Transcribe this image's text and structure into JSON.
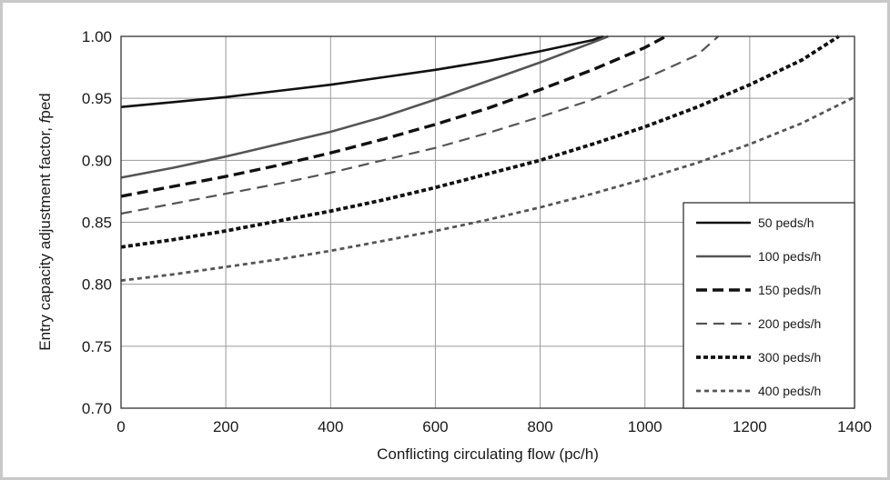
{
  "chart_data": {
    "type": "line",
    "title": "",
    "xlabel": "Conflicting circulating flow (pc/h)",
    "ylabel_parts": [
      "Entry capacity adjustment factor, ",
      "f",
      "ped"
    ],
    "xlim": [
      0,
      1400
    ],
    "ylim": [
      0.7,
      1.0
    ],
    "x_ticks": [
      "0",
      "200",
      "400",
      "600",
      "800",
      "1000",
      "1200",
      "1400"
    ],
    "y_ticks": [
      "0.70",
      "0.75",
      "0.80",
      "0.85",
      "0.90",
      "0.95",
      "1.00"
    ],
    "grid": true,
    "legend_position": "right",
    "series": [
      {
        "name": "50 peds/h",
        "style": "solid",
        "color": "#111111",
        "x": [
          0,
          100,
          200,
          300,
          400,
          500,
          600,
          700,
          800,
          900,
          920
        ],
        "y": [
          0.943,
          0.947,
          0.951,
          0.956,
          0.961,
          0.967,
          0.973,
          0.98,
          0.988,
          0.997,
          1.0
        ]
      },
      {
        "name": "100 peds/h",
        "style": "solid",
        "color": "#555555",
        "x": [
          0,
          100,
          200,
          300,
          400,
          500,
          600,
          700,
          800,
          900,
          930
        ],
        "y": [
          0.886,
          0.894,
          0.903,
          0.913,
          0.923,
          0.935,
          0.949,
          0.964,
          0.979,
          0.995,
          1.0
        ]
      },
      {
        "name": "150 peds/h",
        "style": "dash-heavy",
        "color": "#111111",
        "x": [
          0,
          100,
          200,
          300,
          400,
          500,
          600,
          700,
          800,
          900,
          1000,
          1040
        ],
        "y": [
          0.871,
          0.879,
          0.887,
          0.896,
          0.906,
          0.917,
          0.929,
          0.942,
          0.957,
          0.973,
          0.991,
          1.0
        ]
      },
      {
        "name": "200 peds/h",
        "style": "dash-light",
        "color": "#555555",
        "x": [
          0,
          100,
          200,
          300,
          400,
          500,
          600,
          700,
          800,
          900,
          1000,
          1100,
          1140
        ],
        "y": [
          0.857,
          0.865,
          0.873,
          0.881,
          0.89,
          0.9,
          0.91,
          0.922,
          0.935,
          0.949,
          0.966,
          0.985,
          1.0
        ]
      },
      {
        "name": "300 peds/h",
        "style": "dot-heavy",
        "color": "#111111",
        "x": [
          0,
          100,
          200,
          300,
          400,
          500,
          600,
          700,
          800,
          900,
          1000,
          1100,
          1200,
          1300,
          1370
        ],
        "y": [
          0.83,
          0.836,
          0.843,
          0.851,
          0.859,
          0.868,
          0.878,
          0.889,
          0.9,
          0.913,
          0.927,
          0.943,
          0.961,
          0.981,
          1.0
        ]
      },
      {
        "name": "400 peds/h",
        "style": "dot-light",
        "color": "#555555",
        "x": [
          0,
          100,
          200,
          300,
          400,
          500,
          600,
          700,
          800,
          900,
          1000,
          1100,
          1200,
          1300,
          1400
        ],
        "y": [
          0.803,
          0.808,
          0.814,
          0.82,
          0.827,
          0.835,
          0.843,
          0.852,
          0.862,
          0.873,
          0.885,
          0.898,
          0.913,
          0.93,
          0.951
        ]
      }
    ]
  }
}
